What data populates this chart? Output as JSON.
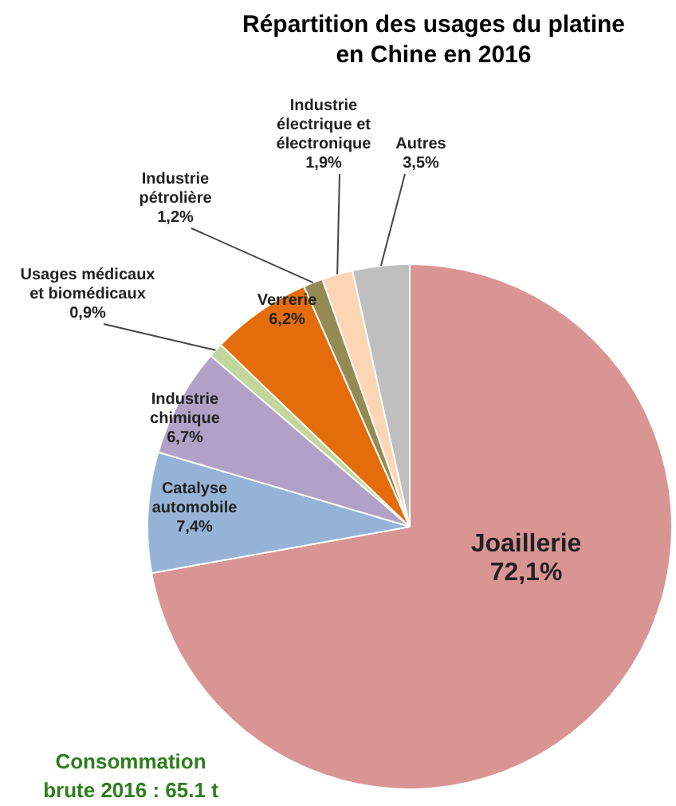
{
  "chart_data": {
    "type": "pie",
    "title": "Répartition des usages du platine\nen Chine en 2016",
    "categories": [
      "Joaillerie",
      "Catalyse\nautomobile",
      "Industrie\nchimique",
      "Usages médicaux\net biomédicaux",
      "Verrerie",
      "Industrie\npétrolière",
      "Industrie\nélectrique et\nélectronique",
      "Autres"
    ],
    "values": [
      72.1,
      7.4,
      6.7,
      0.9,
      6.2,
      1.2,
      1.9,
      3.5
    ],
    "colors": [
      "#d99594",
      "#95b3d7",
      "#b2a1c7",
      "#c3d69b",
      "#e46c0a",
      "#948a54",
      "#fcd5b5",
      "#bfbfbf"
    ],
    "value_labels": [
      "72,1%",
      "7,4%",
      "6,7%",
      "0,9%",
      "6,2%",
      "1,2%",
      "1,9%",
      "3,5%"
    ],
    "legend": false,
    "annotations": [
      "Consommation\nbrute 2016 : 65.1 t"
    ]
  }
}
